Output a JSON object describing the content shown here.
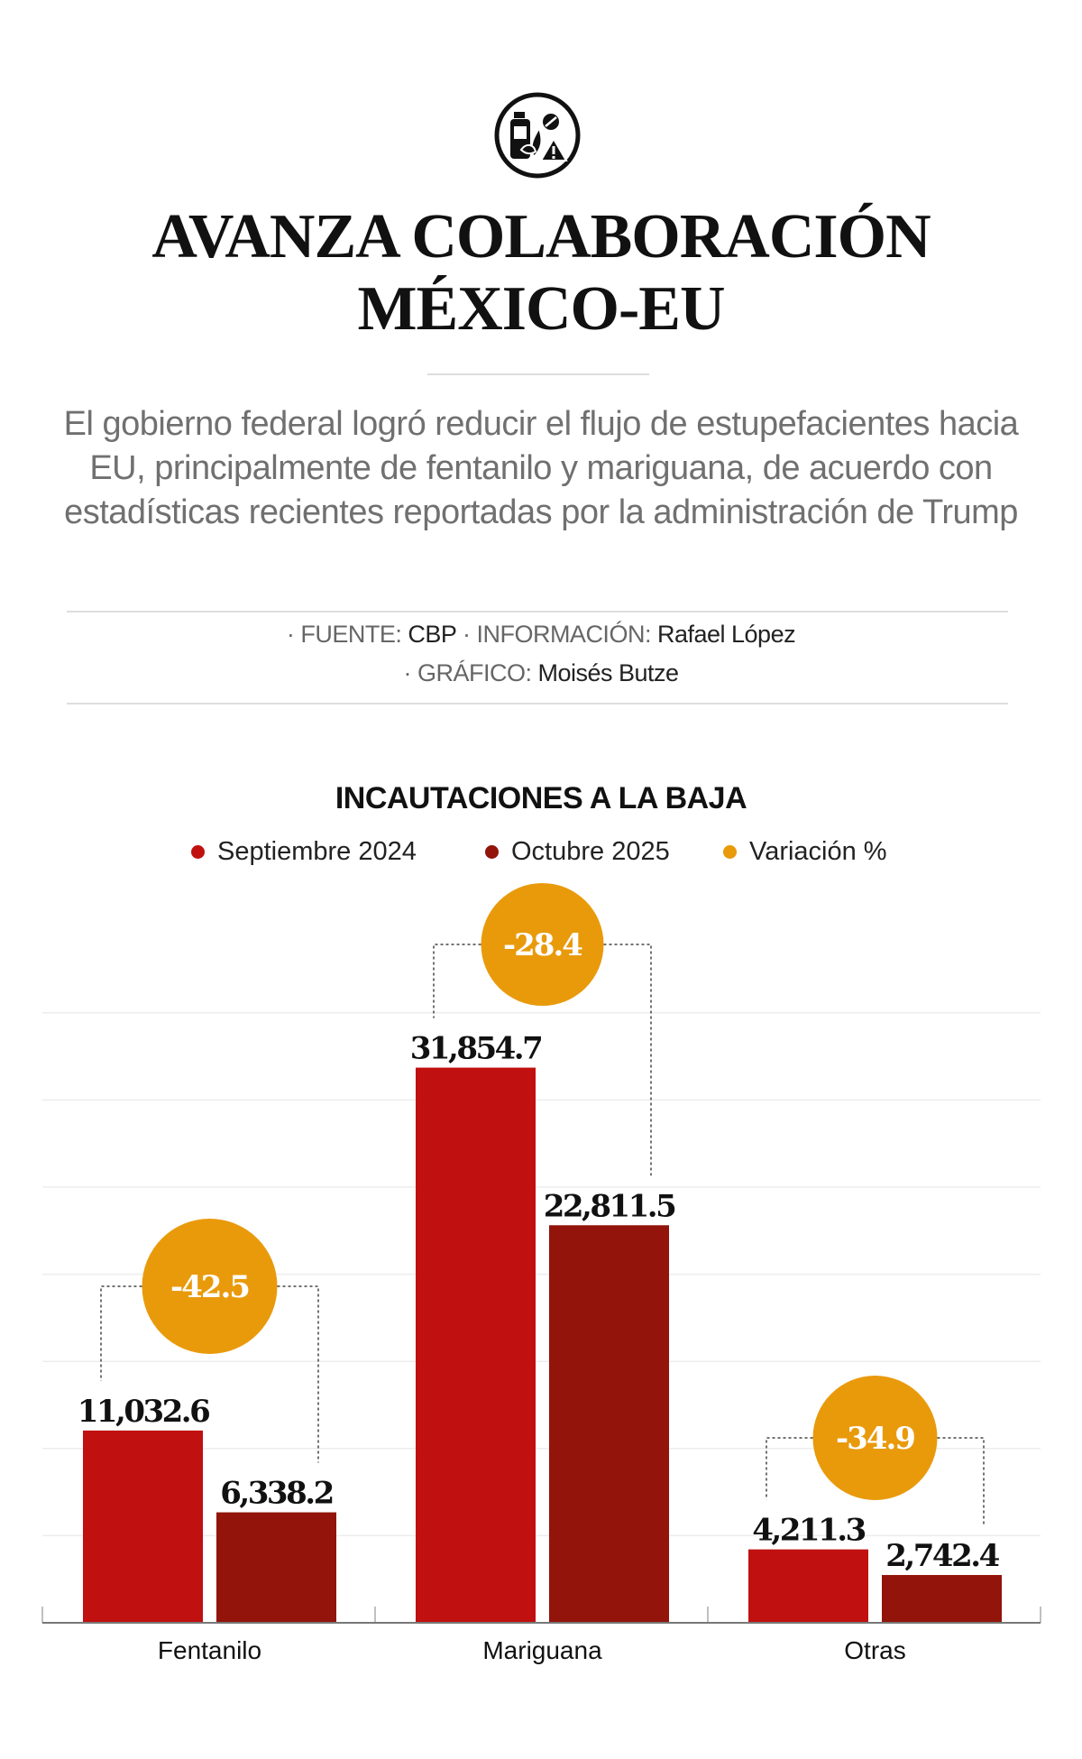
{
  "header": {
    "icon": "drugs-bottle-leaf-pill-warning-icon",
    "title_line1": "AVANZA COLABORACIÓN",
    "title_line2": "MÉXICO-EU",
    "subtitle": "El gobierno federal logró reducir el flujo de estupefacientes hacia EU, principalmente de fentanilo y mariguana, de acuerdo con estadísticas recientes reportadas por la administración de Trump"
  },
  "credits": {
    "source_label": "· FUENTE:",
    "source": "CBP",
    "info_label": "· INFORMACIÓN:",
    "info": "Rafael López",
    "graphic_label": "· GRÁFICO:",
    "graphic": "Moisés Butze"
  },
  "chart_data": {
    "type": "bar",
    "title": "INCAUTACIONES A LA BAJA",
    "categories": [
      "Fentanilo",
      "Mariguana",
      "Otras"
    ],
    "series": [
      {
        "name": "Septiembre 2024",
        "color": "#c0100f",
        "values": [
          11032.6,
          31854.7,
          4211.3
        ],
        "labels": [
          "11,032.6",
          "31,854.7",
          "4,211.3"
        ]
      },
      {
        "name": "Octubre 2025",
        "color": "#92140a",
        "values": [
          6338.2,
          22811.5,
          2742.4
        ],
        "labels": [
          "6,338.2",
          "22,811.5",
          "2,742.4"
        ]
      }
    ],
    "variation": {
      "name": "Variación %",
      "color": "#e99a0b",
      "values": [
        -42.5,
        -28.4,
        -34.9
      ],
      "labels": [
        "-42.5",
        "-28.4",
        "-34.9"
      ]
    },
    "ylim": [
      0,
      35000
    ],
    "grid": true,
    "legend": "top-center"
  }
}
